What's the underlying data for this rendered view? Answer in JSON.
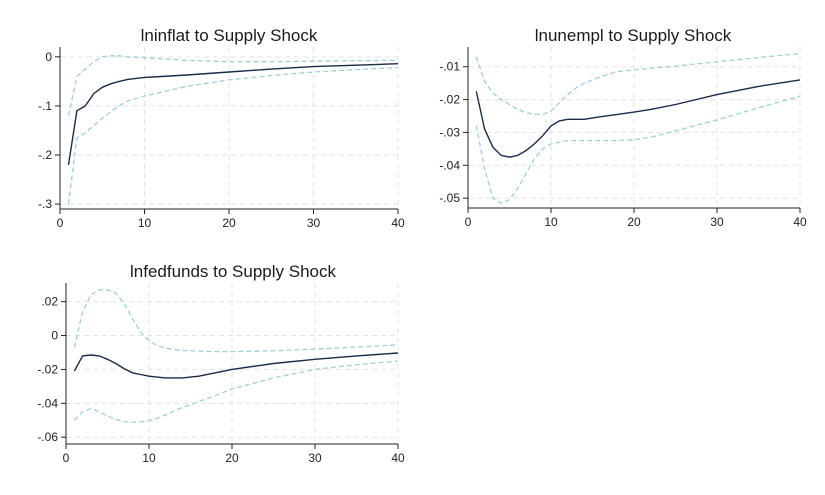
{
  "chart_data": [
    {
      "type": "line",
      "title": "lninflat to Supply Shock",
      "xlabel": "",
      "ylabel": "",
      "xlim": [
        0,
        40
      ],
      "ylim": [
        -0.31,
        0.02
      ],
      "xticks": [
        0,
        10,
        20,
        30,
        40
      ],
      "xtick_labels": [
        "0",
        "10",
        "20",
        "30",
        "40"
      ],
      "yticks": [
        0,
        -0.1,
        -0.2,
        -0.3
      ],
      "ytick_labels": [
        "0",
        "-.1",
        "-.2",
        "-.3"
      ],
      "grid": true,
      "series": [
        {
          "role": "irf",
          "x": [
            1,
            2,
            3,
            4,
            5,
            6,
            7,
            8,
            10,
            12,
            15,
            20,
            25,
            30,
            35,
            40
          ],
          "y": [
            -0.22,
            -0.11,
            -0.1,
            -0.075,
            -0.062,
            -0.055,
            -0.05,
            -0.046,
            -0.042,
            -0.04,
            -0.037,
            -0.031,
            -0.025,
            -0.02,
            -0.017,
            -0.014
          ]
        },
        {
          "role": "ci-upper",
          "x": [
            1,
            2,
            3,
            4,
            5,
            6,
            7,
            8,
            10,
            12,
            15,
            20,
            25,
            30,
            35,
            40
          ],
          "y": [
            -0.12,
            -0.04,
            -0.025,
            -0.01,
            0.0,
            0.002,
            0.002,
            0.0,
            -0.002,
            -0.004,
            -0.007,
            -0.01,
            -0.01,
            -0.009,
            -0.008,
            -0.007
          ]
        },
        {
          "role": "ci-lower",
          "x": [
            1,
            2,
            3,
            4,
            5,
            6,
            7,
            8,
            10,
            12,
            15,
            20,
            25,
            30,
            35,
            40
          ],
          "y": [
            -0.3,
            -0.165,
            -0.155,
            -0.14,
            -0.125,
            -0.112,
            -0.1,
            -0.09,
            -0.08,
            -0.072,
            -0.06,
            -0.047,
            -0.038,
            -0.031,
            -0.026,
            -0.022
          ]
        }
      ]
    },
    {
      "type": "line",
      "title": "lnunempl to Supply Shock",
      "xlabel": "",
      "ylabel": "",
      "xlim": [
        0,
        40
      ],
      "ylim": [
        -0.053,
        -0.004
      ],
      "xticks": [
        0,
        10,
        20,
        30,
        40
      ],
      "xtick_labels": [
        "0",
        "10",
        "20",
        "30",
        "40"
      ],
      "yticks": [
        -0.01,
        -0.02,
        -0.03,
        -0.04,
        -0.05
      ],
      "ytick_labels": [
        "-.01",
        "-.02",
        "-.03",
        "-.04",
        "-.05"
      ],
      "grid": true,
      "series": [
        {
          "role": "irf",
          "x": [
            1,
            2,
            3,
            4,
            5,
            6,
            7,
            8,
            9,
            10,
            11,
            12,
            13,
            14,
            16,
            18,
            20,
            22,
            25,
            30,
            35,
            40
          ],
          "y": [
            -0.0175,
            -0.029,
            -0.0345,
            -0.037,
            -0.0375,
            -0.037,
            -0.0355,
            -0.0335,
            -0.031,
            -0.028,
            -0.0265,
            -0.026,
            -0.026,
            -0.026,
            -0.0252,
            -0.0245,
            -0.0238,
            -0.023,
            -0.0215,
            -0.0185,
            -0.016,
            -0.014
          ]
        },
        {
          "role": "ci-upper",
          "x": [
            1,
            2,
            3,
            4,
            5,
            6,
            7,
            8,
            9,
            10,
            11,
            12,
            13,
            14,
            16,
            18,
            20,
            22,
            25,
            30,
            35,
            40
          ],
          "y": [
            -0.007,
            -0.0145,
            -0.018,
            -0.02,
            -0.0215,
            -0.023,
            -0.024,
            -0.0245,
            -0.0245,
            -0.0235,
            -0.021,
            -0.0185,
            -0.0165,
            -0.015,
            -0.013,
            -0.0115,
            -0.011,
            -0.0105,
            -0.0098,
            -0.0085,
            -0.0072,
            -0.006
          ]
        },
        {
          "role": "ci-lower",
          "x": [
            1,
            2,
            3,
            4,
            5,
            6,
            7,
            8,
            9,
            10,
            11,
            12,
            13,
            14,
            16,
            18,
            20,
            22,
            25,
            30,
            35,
            40
          ],
          "y": [
            -0.028,
            -0.041,
            -0.05,
            -0.0515,
            -0.0505,
            -0.047,
            -0.0425,
            -0.038,
            -0.035,
            -0.0335,
            -0.033,
            -0.0325,
            -0.0325,
            -0.0325,
            -0.0325,
            -0.0325,
            -0.0322,
            -0.0315,
            -0.0295,
            -0.0262,
            -0.0225,
            -0.019
          ]
        }
      ]
    },
    {
      "type": "line",
      "title": "lnfedfunds to Supply Shock",
      "xlabel": "",
      "ylabel": "",
      "xlim": [
        0,
        40
      ],
      "ylim": [
        -0.064,
        0.031
      ],
      "xticks": [
        0,
        10,
        20,
        30,
        40
      ],
      "xtick_labels": [
        "0",
        "10",
        "20",
        "30",
        "40"
      ],
      "yticks": [
        0.02,
        0,
        -0.02,
        -0.04,
        -0.06
      ],
      "ytick_labels": [
        ".02",
        "0",
        "-.02",
        "-.04",
        "-.06"
      ],
      "grid": true,
      "series": [
        {
          "role": "irf",
          "x": [
            1,
            2,
            3,
            4,
            5,
            6,
            7,
            8,
            9,
            10,
            11,
            12,
            13,
            14,
            16,
            18,
            20,
            25,
            30,
            35,
            40
          ],
          "y": [
            -0.021,
            -0.012,
            -0.0115,
            -0.012,
            -0.014,
            -0.0165,
            -0.0195,
            -0.022,
            -0.023,
            -0.024,
            -0.0245,
            -0.025,
            -0.025,
            -0.025,
            -0.024,
            -0.022,
            -0.02,
            -0.0165,
            -0.014,
            -0.012,
            -0.0103
          ]
        },
        {
          "role": "ci-upper",
          "x": [
            1,
            2,
            3,
            4,
            5,
            6,
            7,
            8,
            9,
            10,
            11,
            12,
            13,
            14,
            16,
            18,
            20,
            25,
            30,
            35,
            40
          ],
          "y": [
            -0.007,
            0.014,
            0.024,
            0.027,
            0.027,
            0.025,
            0.019,
            0.01,
            0.002,
            -0.003,
            -0.006,
            -0.0075,
            -0.0083,
            -0.0088,
            -0.0092,
            -0.0095,
            -0.0095,
            -0.009,
            -0.008,
            -0.0068,
            -0.0055
          ]
        },
        {
          "role": "ci-lower",
          "x": [
            1,
            2,
            3,
            4,
            5,
            6,
            7,
            8,
            9,
            10,
            11,
            12,
            13,
            14,
            16,
            18,
            20,
            25,
            30,
            35,
            40
          ],
          "y": [
            -0.05,
            -0.045,
            -0.043,
            -0.045,
            -0.0475,
            -0.0495,
            -0.0508,
            -0.0512,
            -0.051,
            -0.0502,
            -0.0488,
            -0.0468,
            -0.0445,
            -0.0425,
            -0.039,
            -0.0355,
            -0.0315,
            -0.025,
            -0.02,
            -0.0172,
            -0.015
          ]
        }
      ]
    }
  ]
}
